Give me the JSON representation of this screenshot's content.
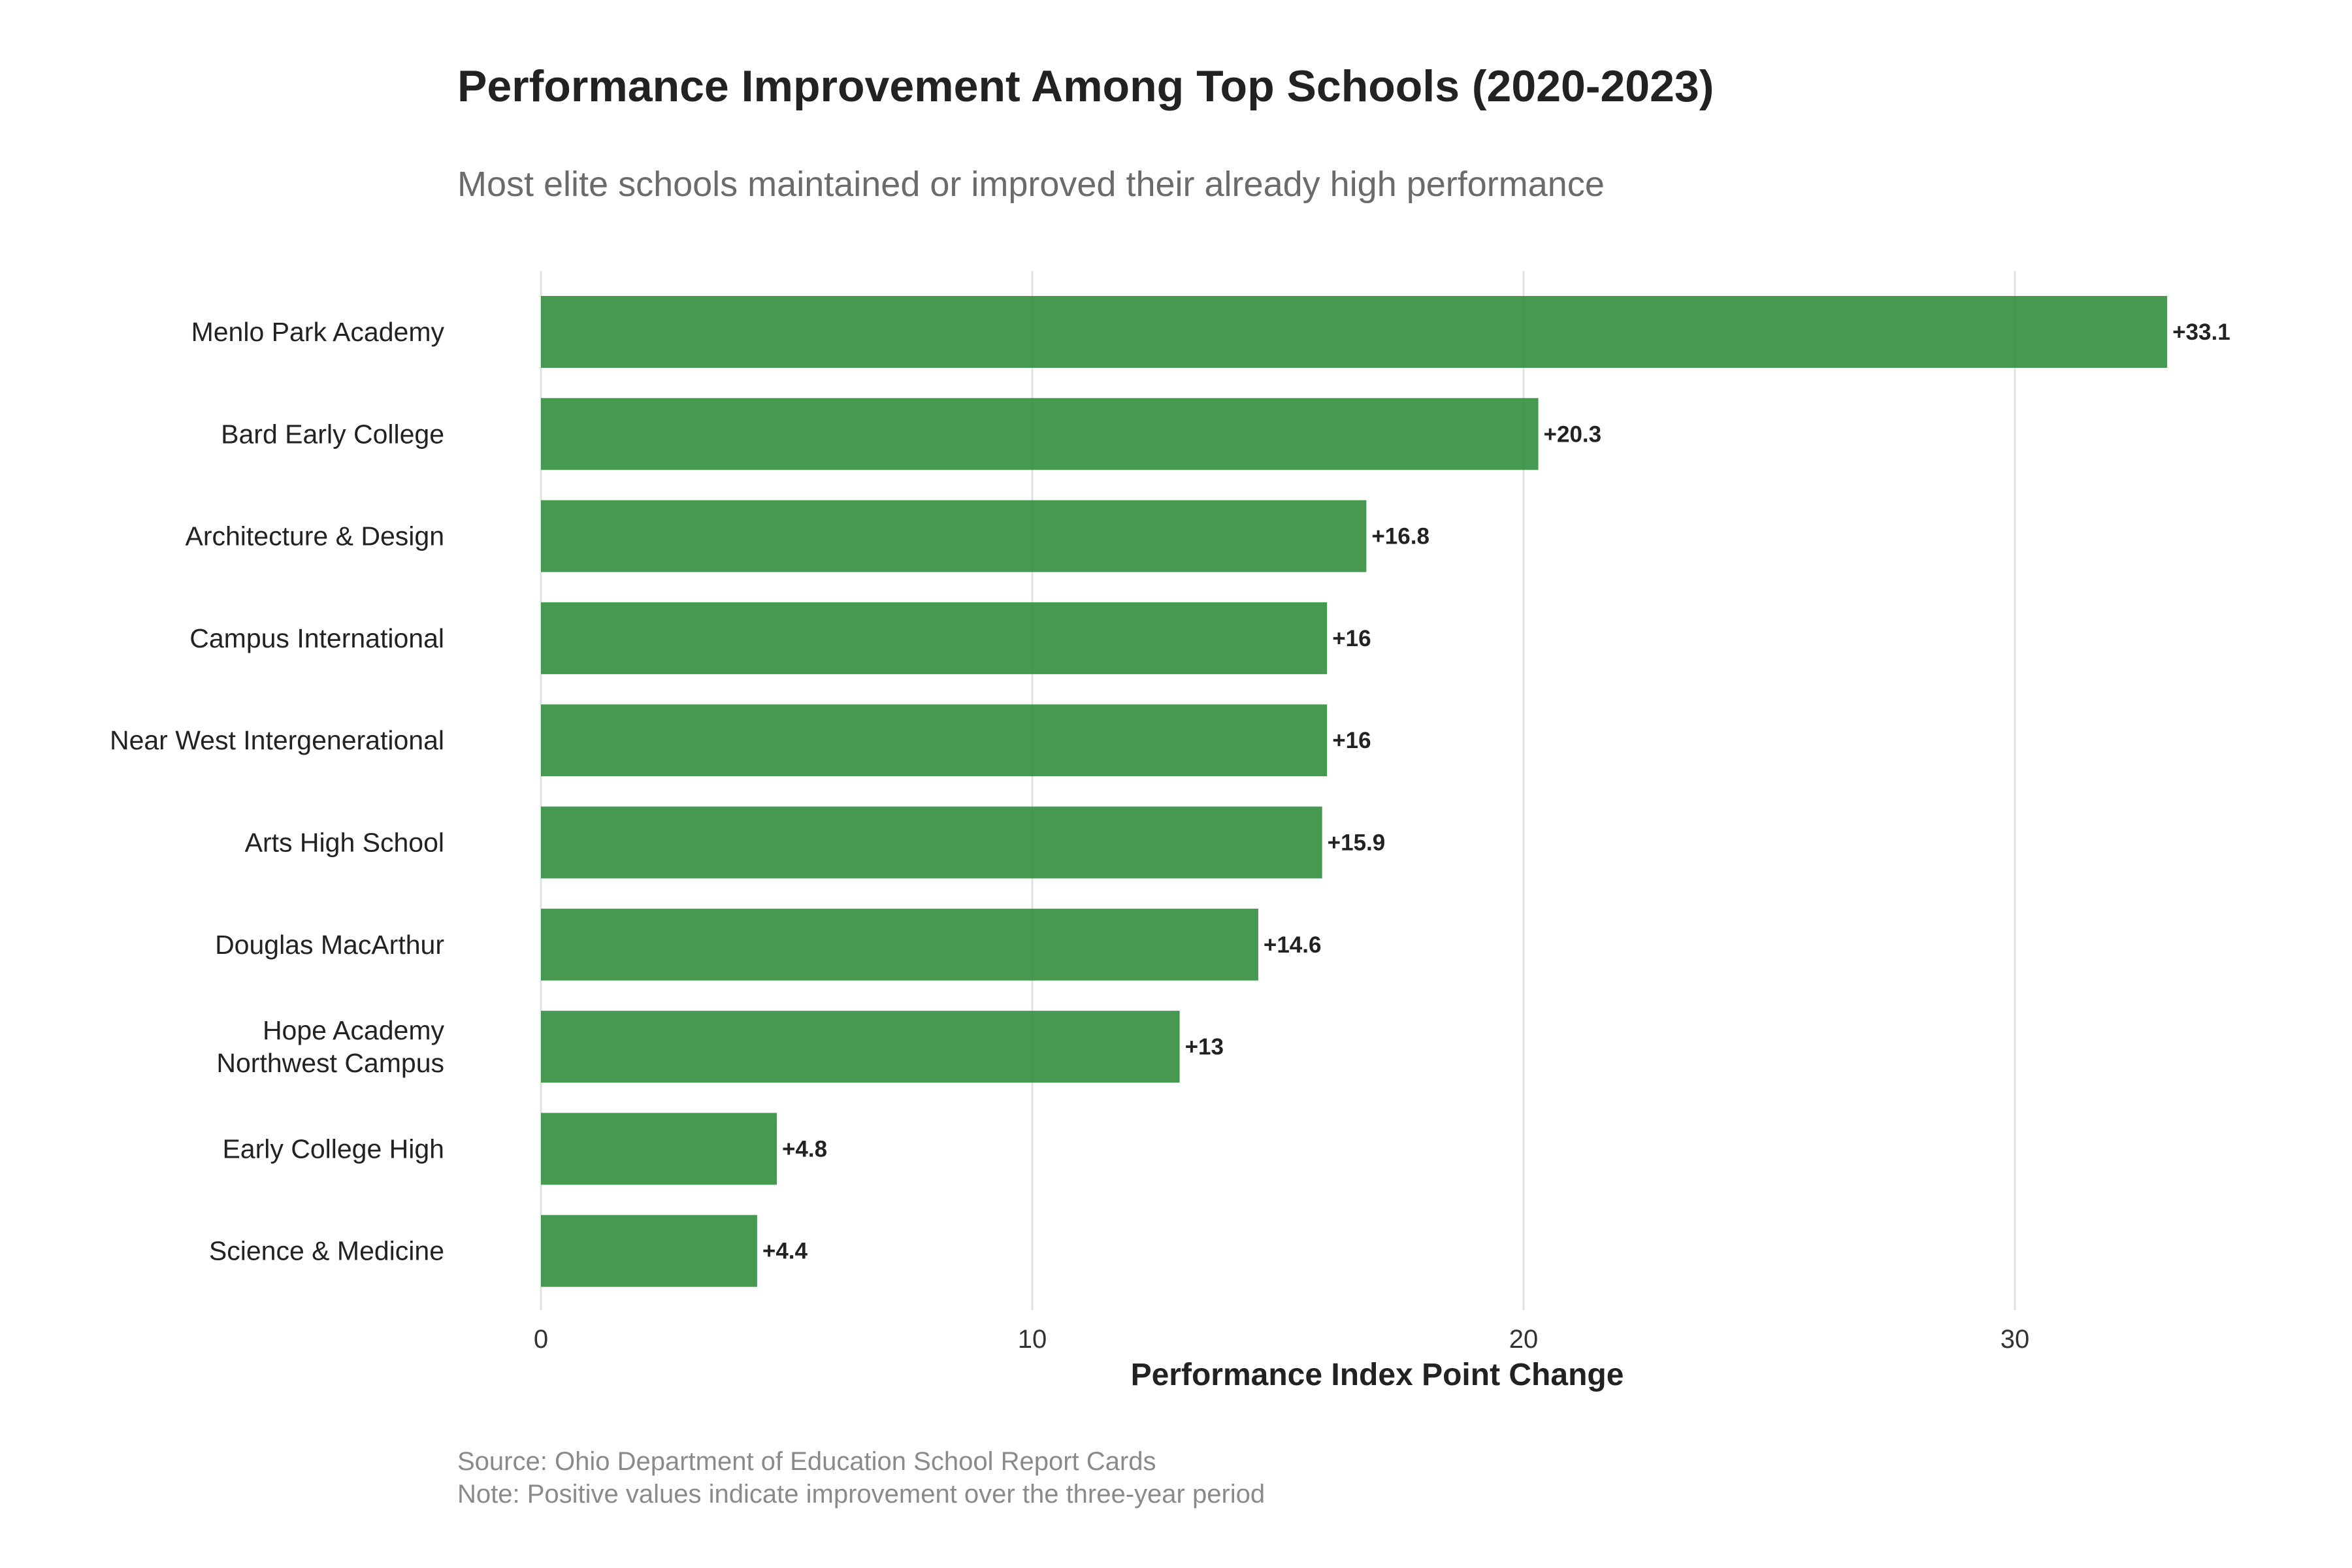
{
  "colors": {
    "bar": "#2e8b3a",
    "grid": "#e0e0e0"
  },
  "chart_data": {
    "type": "bar",
    "orientation": "horizontal",
    "title": "Performance Improvement Among Top Schools (2020-2023)",
    "subtitle": "Most elite schools maintained or improved their already high performance",
    "xlabel": "Performance Index Point Change",
    "ylabel": "",
    "xlim": [
      0,
      35
    ],
    "xticks": [
      0,
      10,
      20,
      30
    ],
    "categories": [
      [
        "Menlo Park Academy"
      ],
      [
        "Bard Early College"
      ],
      [
        "Architecture & Design"
      ],
      [
        "Campus International"
      ],
      [
        "Near West Intergenerational"
      ],
      [
        "Arts High School"
      ],
      [
        "Douglas MacArthur"
      ],
      [
        "Hope Academy",
        "Northwest Campus"
      ],
      [
        "Early College High"
      ],
      [
        "Science & Medicine"
      ]
    ],
    "values": [
      33.1,
      20.3,
      16.8,
      16,
      16,
      15.9,
      14.6,
      13,
      4.8,
      4.4
    ],
    "value_labels": [
      "+33.1",
      "+20.3",
      "+16.8",
      "+16",
      "+16",
      "+15.9",
      "+14.6",
      "+13",
      "+4.8",
      "+4.4"
    ],
    "grid": true,
    "caption": [
      "Source: Ohio Department of Education School Report Cards",
      "Note: Positive values indicate improvement over the three-year period"
    ]
  }
}
